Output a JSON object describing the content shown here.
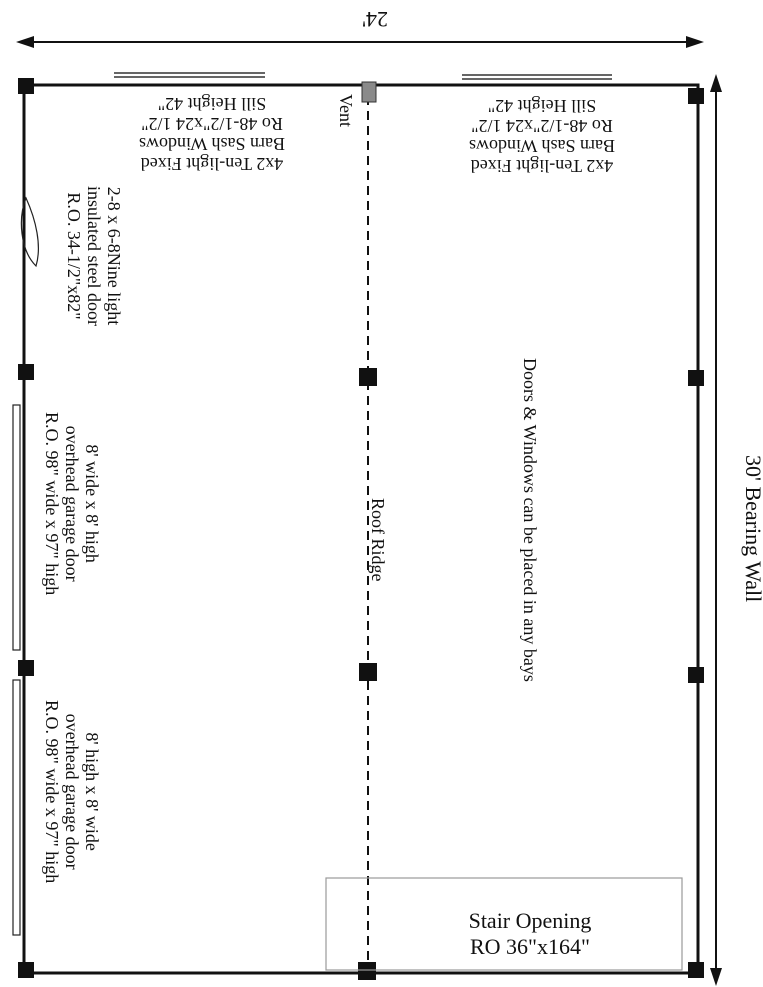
{
  "dimensions": {
    "width_label": "24'",
    "length_label": "30' Bearing Wall"
  },
  "labels": {
    "vent": "Vent",
    "roof_ridge": "Roof Ridge",
    "note": "Doors & Windows can be placed in any bays"
  },
  "windows": [
    {
      "lines": [
        "4x2 Ten-light Fixed",
        "Barn Sash Windows",
        "Ro 48-1/2\"x24 1/2\"",
        "Sill Height 42\""
      ]
    },
    {
      "lines": [
        "4x2 Ten-light Fixed",
        "Barn Sash Windows",
        "Ro 48-1/2\"x24 1/2\"",
        "Sill Height 42\""
      ]
    }
  ],
  "entry_door": {
    "lines": [
      "2-8 x 6-8Nine light",
      "insulated steel door",
      "R.O. 34-1/2\"x82\""
    ]
  },
  "garage_doors": [
    {
      "lines": [
        "8' wide x 8' high",
        "overhead garage door",
        "R.O. 98\" wide x 97\" high"
      ]
    },
    {
      "lines": [
        "8' high x 8' wide",
        "overhead garage door",
        "R.O. 98\" wide x 97\" high"
      ]
    }
  ],
  "stair": {
    "line1": "Stair Opening",
    "line2": "RO 36\"x164\""
  },
  "colors": {
    "line": "#111111",
    "vent": "#8a8a8a",
    "stair_outline": "#9a9a9a"
  }
}
